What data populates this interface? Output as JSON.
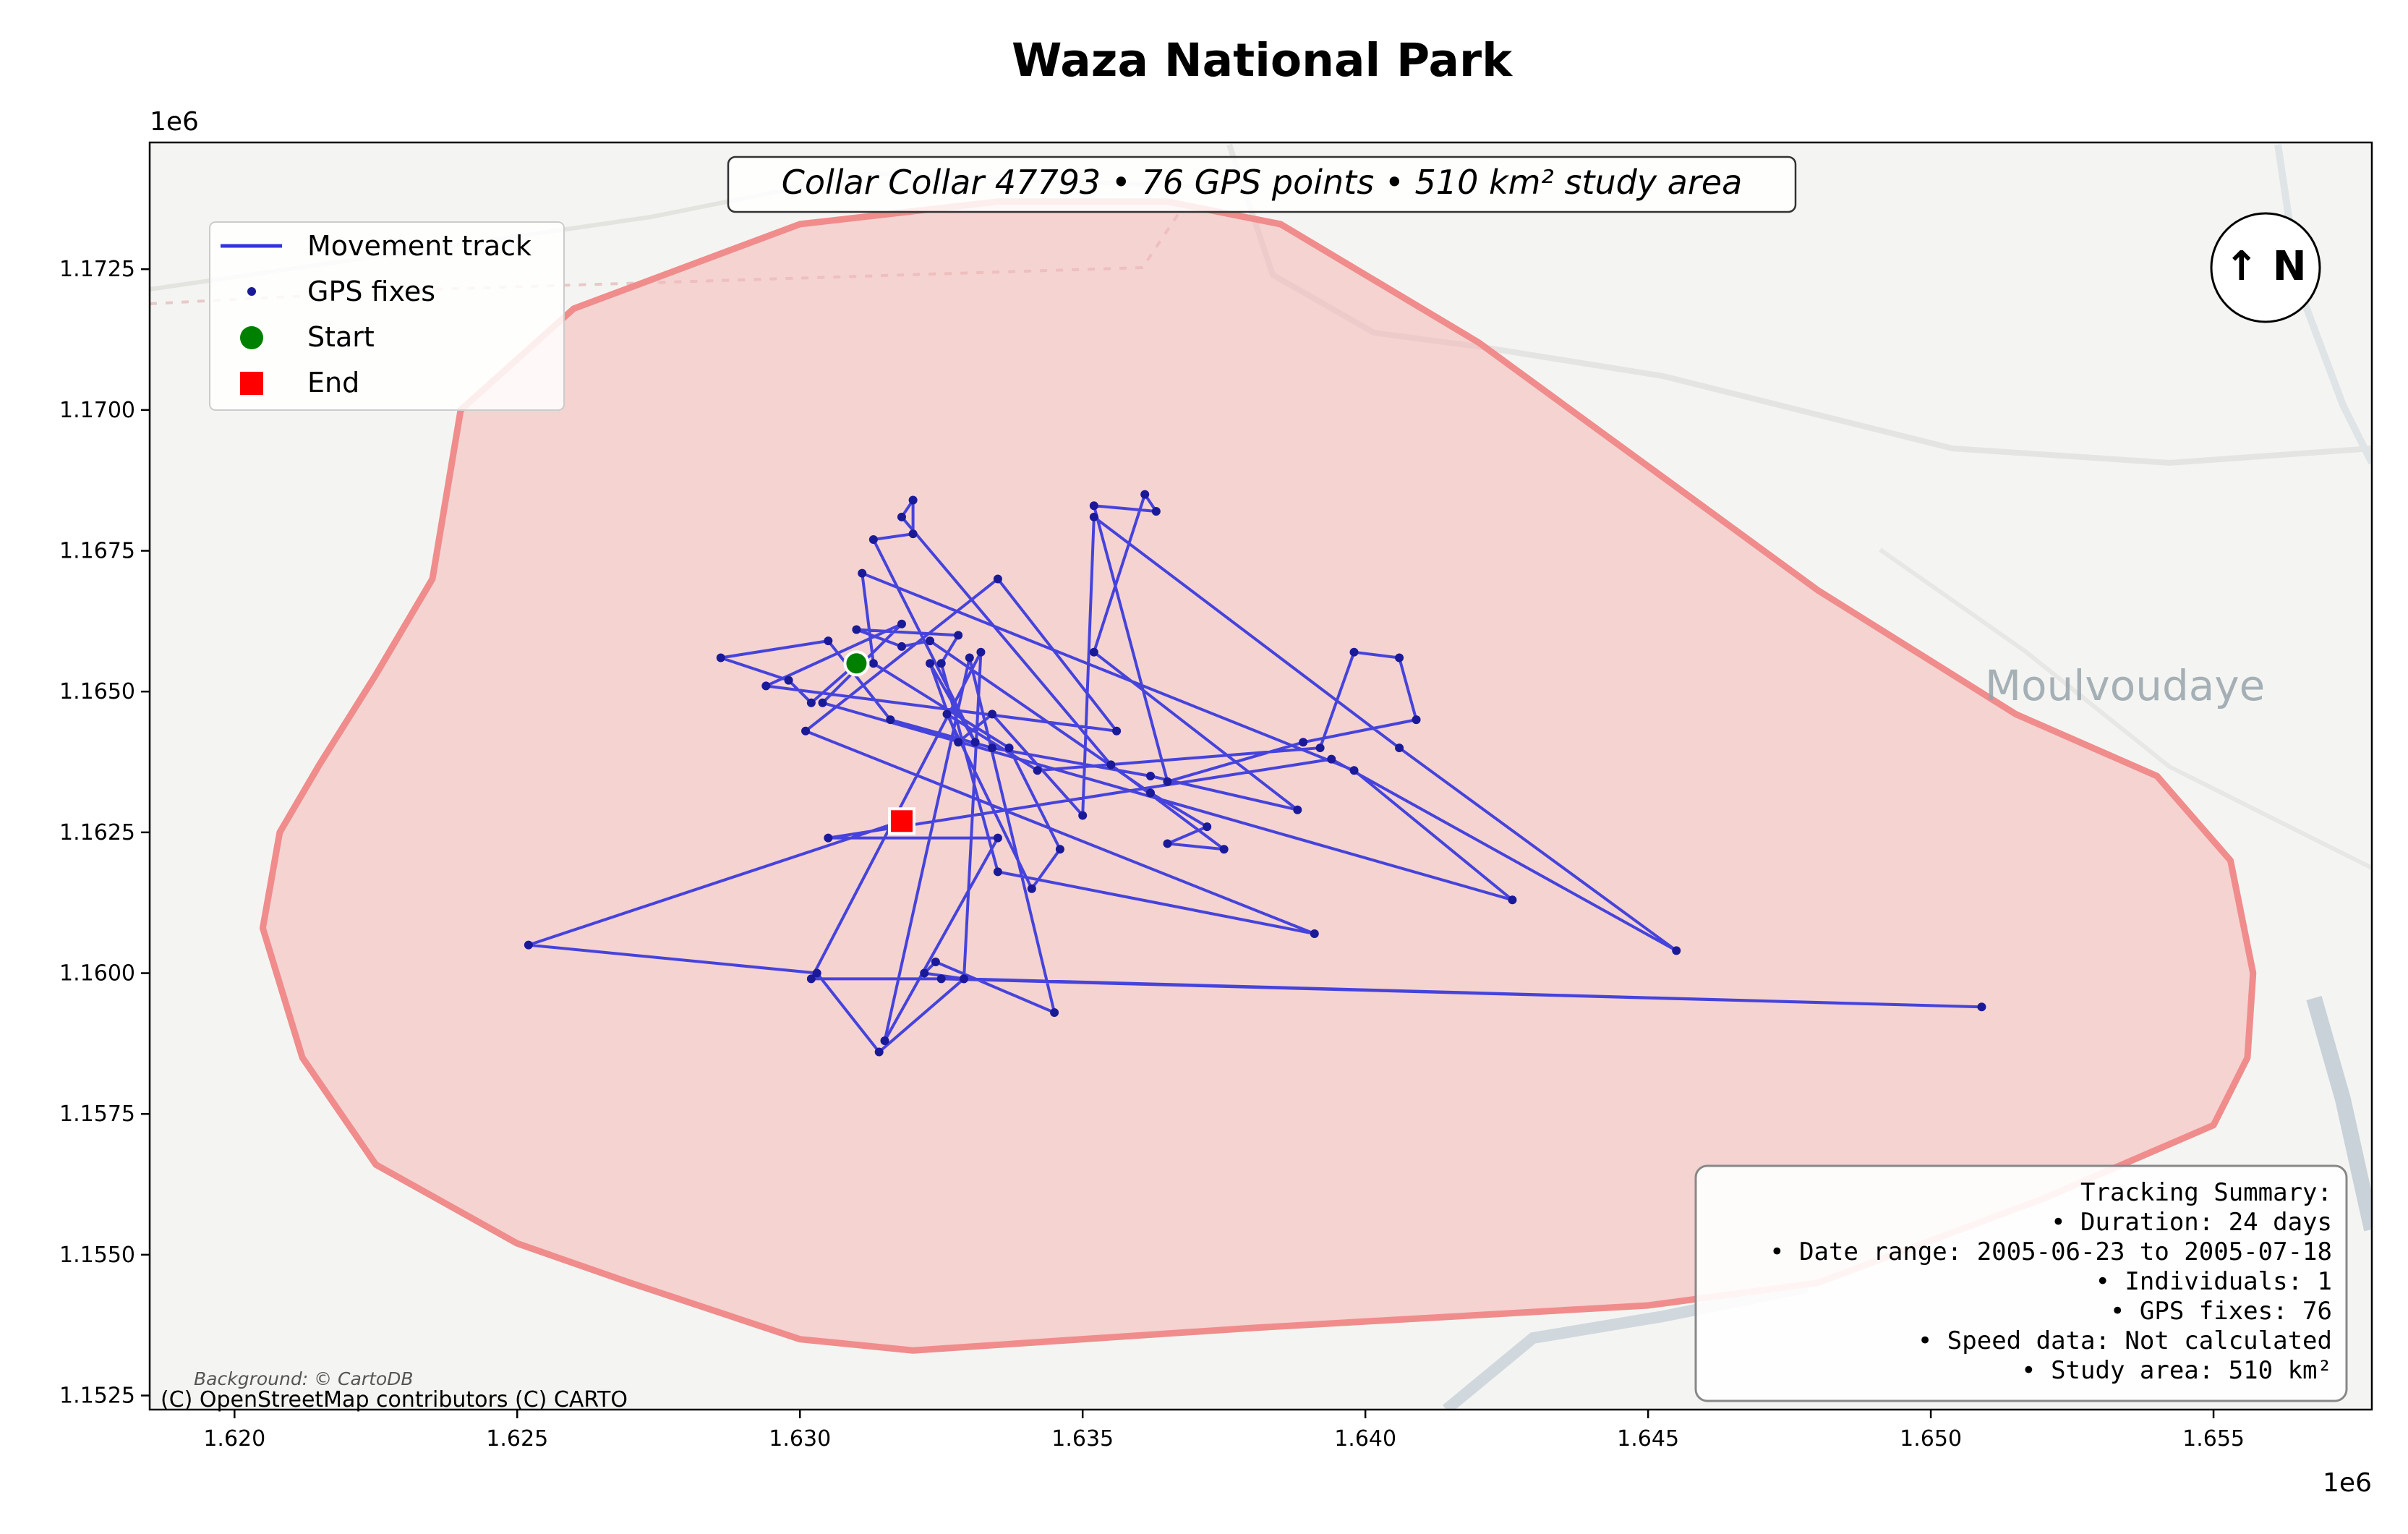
{
  "title": "Waza National Park",
  "subtitle": "Collar Collar 47793 • 76 GPS points • 510 km² study area",
  "x_offset_label": "1e6",
  "y_offset_label": "1e6",
  "x_ticks": [
    "1.620",
    "1.625",
    "1.630",
    "1.635",
    "1.640",
    "1.645",
    "1.650",
    "1.655"
  ],
  "y_ticks": [
    "1.1725",
    "1.1700",
    "1.1675",
    "1.1650",
    "1.1625",
    "1.1600",
    "1.1575",
    "1.1550",
    "1.1525"
  ],
  "legend": {
    "track": "Movement track",
    "fixes": "GPS fixes",
    "start": "Start",
    "end": "End"
  },
  "north_arrow": "↑ N",
  "map_place_label": "Moulvoudaye",
  "attribution": "(C) OpenStreetMap contributors (C) CARTO",
  "background_credit": "Background: © CartoDB",
  "summary": {
    "heading": "Tracking Summary:",
    "lines": [
      "• Duration: 24 days",
      "• Date range: 2005-06-23 to 2005-07-18",
      "• Individuals: 1",
      "• GPS fixes: 76",
      "• Speed data: Not calculated",
      "• Study area: 510 km²"
    ]
  },
  "colors": {
    "track": "#3333dd",
    "fix": "#1a1a99",
    "start": "#008000",
    "end": "#ff0000",
    "area_fill": "#f4b6b6",
    "area_edge": "#f08c8c"
  },
  "chart_data": {
    "type": "scatter",
    "xlim": [
      1.6185,
      1.6578
    ],
    "ylim": [
      1.15225,
      1.17475
    ],
    "x_scale": "1e6",
    "y_scale": "1e6",
    "track": [
      [
        1.631,
        1.1655
      ],
      [
        1.6302,
        1.1648
      ],
      [
        1.6298,
        1.1652
      ],
      [
        1.6286,
        1.1656
      ],
      [
        1.6305,
        1.1659
      ],
      [
        1.6316,
        1.1645
      ],
      [
        1.6334,
        1.164
      ],
      [
        1.6362,
        1.1635
      ],
      [
        1.6388,
        1.1629
      ],
      [
        1.6352,
        1.1657
      ],
      [
        1.6361,
        1.1685
      ],
      [
        1.6363,
        1.1682
      ],
      [
        1.6352,
        1.1683
      ],
      [
        1.6365,
        1.1634
      ],
      [
        1.6389,
        1.1641
      ],
      [
        1.6409,
        1.1645
      ],
      [
        1.6406,
        1.1656
      ],
      [
        1.6398,
        1.1657
      ],
      [
        1.6392,
        1.164
      ],
      [
        1.6342,
        1.1636
      ],
      [
        1.6326,
        1.1646
      ],
      [
        1.6341,
        1.1615
      ],
      [
        1.6346,
        1.1622
      ],
      [
        1.6337,
        1.164
      ],
      [
        1.6313,
        1.1655
      ],
      [
        1.6311,
        1.1671
      ],
      [
        1.6398,
        1.1636
      ],
      [
        1.6426,
        1.1613
      ],
      [
        1.6304,
        1.1648
      ],
      [
        1.6318,
        1.1662
      ],
      [
        1.6294,
        1.1651
      ],
      [
        1.6356,
        1.1643
      ],
      [
        1.6335,
        1.167
      ],
      [
        1.6301,
        1.1643
      ],
      [
        1.6391,
        1.1607
      ],
      [
        1.6335,
        1.1618
      ],
      [
        1.6325,
        1.1655
      ],
      [
        1.6328,
        1.166
      ],
      [
        1.631,
        1.1661
      ],
      [
        1.6318,
        1.1658
      ],
      [
        1.6323,
        1.1659
      ],
      [
        1.6362,
        1.1632
      ],
      [
        1.6372,
        1.1626
      ],
      [
        1.6365,
        1.1623
      ],
      [
        1.6375,
        1.1622
      ],
      [
        1.6355,
        1.1637
      ],
      [
        1.6318,
        1.1681
      ],
      [
        1.632,
        1.1684
      ],
      [
        1.632,
        1.1678
      ],
      [
        1.6313,
        1.1677
      ],
      [
        1.6331,
        1.1641
      ],
      [
        1.6323,
        1.1655
      ],
      [
        1.6328,
        1.1641
      ],
      [
        1.6334,
        1.1646
      ],
      [
        1.635,
        1.1628
      ],
      [
        1.6352,
        1.1681
      ],
      [
        1.6406,
        1.164
      ],
      [
        1.6455,
        1.1604
      ],
      [
        1.6394,
        1.1638
      ],
      [
        1.6305,
        1.1624
      ],
      [
        1.6335,
        1.1624
      ],
      [
        1.6315,
        1.1588
      ],
      [
        1.633,
        1.1656
      ],
      [
        1.6345,
        1.1593
      ],
      [
        1.6324,
        1.1602
      ],
      [
        1.6322,
        1.16
      ],
      [
        1.6329,
        1.1599
      ],
      [
        1.6509,
        1.1594
      ],
      [
        1.6325,
        1.1599
      ],
      [
        1.6302,
        1.1599
      ],
      [
        1.6332,
        1.1657
      ],
      [
        1.6329,
        1.1599
      ],
      [
        1.6314,
        1.1586
      ],
      [
        1.6303,
        1.16
      ],
      [
        1.6252,
        1.1605
      ],
      [
        1.6318,
        1.1627
      ]
    ],
    "start": [
      1.631,
      1.1655
    ],
    "end": [
      1.6318,
      1.1627
    ],
    "study_area": [
      [
        1.624,
        1.17
      ],
      [
        1.626,
        1.1718
      ],
      [
        1.63,
        1.1733
      ],
      [
        1.6335,
        1.1737
      ],
      [
        1.6365,
        1.1737
      ],
      [
        1.6385,
        1.1733
      ],
      [
        1.642,
        1.1712
      ],
      [
        1.645,
        1.169
      ],
      [
        1.648,
        1.1668
      ],
      [
        1.6515,
        1.1646
      ],
      [
        1.654,
        1.1635
      ],
      [
        1.6553,
        1.162
      ],
      [
        1.6557,
        1.16
      ],
      [
        1.6556,
        1.1585
      ],
      [
        1.655,
        1.1573
      ],
      [
        1.652,
        1.156
      ],
      [
        1.648,
        1.1545
      ],
      [
        1.645,
        1.1541
      ],
      [
        1.638,
        1.1537
      ],
      [
        1.632,
        1.1533
      ],
      [
        1.63,
        1.1535
      ],
      [
        1.627,
        1.1545
      ],
      [
        1.625,
        1.1552
      ],
      [
        1.6225,
        1.1566
      ],
      [
        1.6212,
        1.1585
      ],
      [
        1.6205,
        1.1608
      ],
      [
        1.6208,
        1.1625
      ],
      [
        1.6215,
        1.1637
      ],
      [
        1.6225,
        1.1653
      ],
      [
        1.6235,
        1.167
      ]
    ]
  }
}
